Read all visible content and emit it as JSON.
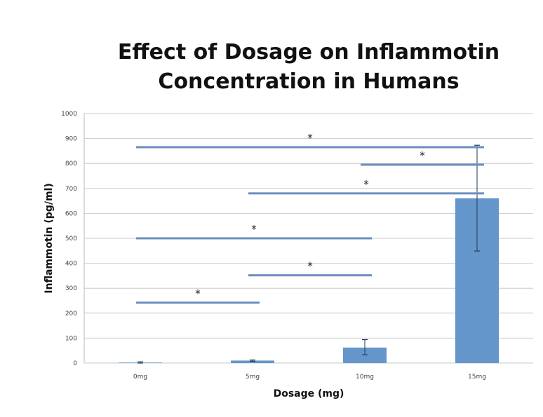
{
  "chart_data": {
    "type": "bar",
    "title": "Effect of Dosage on Inflammotin Concentration in Humans",
    "title_lines": [
      "Effect of Dosage on Inflammotin",
      "Concentration in Humans"
    ],
    "xlabel": "Dosage (mg)",
    "ylabel": "Inflammotin (pg/ml)",
    "categories": [
      "0mg",
      "5mg",
      "10mg",
      "15mg"
    ],
    "values": [
      2,
      10,
      62,
      660
    ],
    "error": [
      [
        0,
        5
      ],
      [
        7,
        12
      ],
      [
        33,
        94
      ],
      [
        449,
        873
      ]
    ],
    "ylim": [
      0,
      1000
    ],
    "yticks": [
      "0",
      "100",
      "200",
      "300",
      "400",
      "500",
      "600",
      "700",
      "800",
      "900",
      "1000"
    ],
    "grid": true,
    "bar_color": "#6596CB",
    "significance": [
      {
        "from": "0mg",
        "to": "15mg",
        "y": 865,
        "label": "*"
      },
      {
        "from": "10mg",
        "to": "15mg",
        "y": 795,
        "label": "*"
      },
      {
        "from": "5mg",
        "to": "15mg",
        "y": 680,
        "label": "*"
      },
      {
        "from": "0mg",
        "to": "10mg",
        "y": 500,
        "label": "*"
      },
      {
        "from": "5mg",
        "to": "10mg",
        "y": 352,
        "label": "*"
      },
      {
        "from": "0mg",
        "to": "5mg",
        "y": 242,
        "label": "*"
      }
    ]
  }
}
